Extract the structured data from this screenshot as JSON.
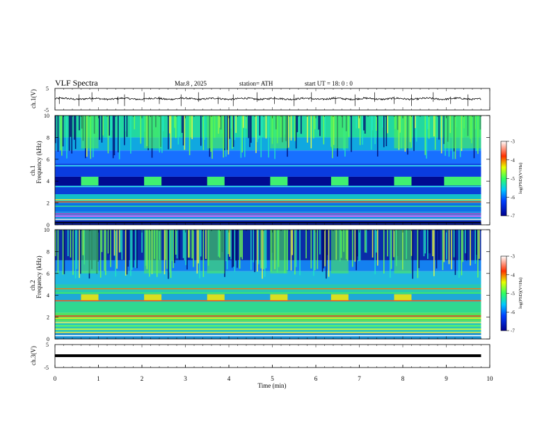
{
  "header": {
    "title": "VLF  Spectra",
    "date": "Mar.8  , 2025",
    "station": "station= ATH",
    "start": "start  UT  =    18: 0   : 0"
  },
  "chart_data": [
    {
      "type": "line",
      "panel": "ch1-waveform",
      "ylabel": "ch.1(V)",
      "ylim": [
        -5,
        5
      ],
      "yticks": [
        "5",
        "-5"
      ],
      "x_range_min": [
        0,
        9.8
      ],
      "baseline_v": 0.2,
      "noise_amplitude_v": 0.8,
      "spike_times_min": [
        0.1,
        0.55,
        0.85,
        1.45,
        1.6,
        2.05,
        2.4,
        2.9,
        3.3,
        3.75,
        4.1,
        4.65,
        5.05,
        5.5,
        5.9,
        6.45,
        6.9,
        7.35,
        7.8,
        8.2,
        8.7,
        9.1,
        9.5
      ]
    },
    {
      "type": "heatmap",
      "panel": "ch1-spectrogram",
      "ylabel_top": "ch.1",
      "ylabel": "Frequency  (kHz)",
      "ylim": [
        0,
        10
      ],
      "yticks": [
        "0",
        "2",
        "4",
        "6",
        "8",
        "10"
      ],
      "xlim": [
        0,
        10
      ],
      "colorbar": {
        "label": "log(PSD)(V²/Hz)",
        "range": [
          -7,
          -3
        ],
        "ticks": [
          "-3",
          "-4",
          "-5",
          "-6",
          "-7"
        ]
      },
      "transmitter_bursts_min": [
        [
          0.6,
          1.0
        ],
        [
          2.05,
          2.45
        ],
        [
          3.5,
          3.9
        ],
        [
          4.95,
          5.35
        ],
        [
          6.35,
          6.75
        ],
        [
          7.8,
          8.2
        ],
        [
          8.95,
          9.8
        ]
      ],
      "burst_band_khz": [
        3.6,
        4.4
      ]
    },
    {
      "type": "heatmap",
      "panel": "ch2-spectrogram",
      "ylabel_top": "ch.2",
      "ylabel": "Frequency  (kHz)",
      "ylim": [
        0,
        10
      ],
      "yticks": [
        "0",
        "2",
        "4",
        "6",
        "8",
        "10"
      ],
      "xlim": [
        0,
        10
      ],
      "colorbar": {
        "label": "log(PSD)(V²/Hz)",
        "range": [
          -7,
          -3
        ],
        "ticks": [
          "-3",
          "-4",
          "-5",
          "-6",
          "-7"
        ]
      },
      "transmitter_bursts_min": [
        [
          0.6,
          1.0
        ],
        [
          2.05,
          2.45
        ],
        [
          3.5,
          3.9
        ],
        [
          4.95,
          5.35
        ],
        [
          6.35,
          6.75
        ],
        [
          7.8,
          8.2
        ]
      ],
      "burst_band_khz": [
        3.5,
        4.1
      ]
    },
    {
      "type": "line",
      "panel": "ch3-waveform",
      "ylabel": "ch.3(V)",
      "ylim": [
        -5,
        5
      ],
      "yticks": [
        "5",
        "-5"
      ],
      "x_range_min": [
        0,
        9.8
      ],
      "baseline_v": 0.0,
      "xlabel": "Time  (min)",
      "xticks": [
        "0",
        "1",
        "2",
        "3",
        "4",
        "5",
        "6",
        "7",
        "8",
        "9",
        "10"
      ]
    }
  ],
  "colors": {
    "axis": "#000000",
    "background": "#ffffff"
  }
}
